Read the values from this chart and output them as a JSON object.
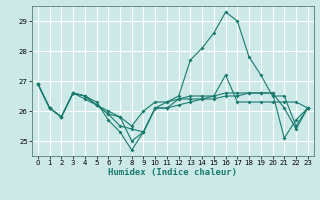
{
  "xlabel": "Humidex (Indice chaleur)",
  "ylabel": "",
  "background_color": "#cce9e8",
  "grid_color": "#ffffff",
  "line_color": "#1a7a6e",
  "hours": [
    0,
    1,
    2,
    3,
    4,
    5,
    6,
    7,
    8,
    9,
    10,
    11,
    12,
    13,
    14,
    15,
    16,
    17,
    18,
    19,
    20,
    21,
    22,
    23
  ],
  "series": [
    [
      26.9,
      26.1,
      25.8,
      26.6,
      26.5,
      26.3,
      25.7,
      25.3,
      24.7,
      25.3,
      26.1,
      26.1,
      26.2,
      26.3,
      26.4,
      26.4,
      26.5,
      26.5,
      26.6,
      26.6,
      26.6,
      26.1,
      25.4,
      26.1
    ],
    [
      26.9,
      26.1,
      25.8,
      26.6,
      26.5,
      26.2,
      25.9,
      25.8,
      25.5,
      26.0,
      26.3,
      26.3,
      26.4,
      26.4,
      26.4,
      26.5,
      27.2,
      26.3,
      26.3,
      26.3,
      26.3,
      26.3,
      26.3,
      26.1
    ],
    [
      26.9,
      26.1,
      25.8,
      26.6,
      26.4,
      26.2,
      26.0,
      25.8,
      25.0,
      25.3,
      26.1,
      26.3,
      26.5,
      27.7,
      28.1,
      28.6,
      29.3,
      29.0,
      27.8,
      27.2,
      26.5,
      26.5,
      25.5,
      26.1
    ],
    [
      26.9,
      26.1,
      25.8,
      26.6,
      26.5,
      26.2,
      25.9,
      25.5,
      25.4,
      25.3,
      26.1,
      26.1,
      26.4,
      26.5,
      26.5,
      26.5,
      26.6,
      26.6,
      26.6,
      26.6,
      26.6,
      25.1,
      25.7,
      26.1
    ]
  ],
  "ylim": [
    24.5,
    29.5
  ],
  "yticks": [
    25,
    26,
    27,
    28,
    29
  ],
  "xlim": [
    -0.5,
    23.5
  ],
  "xticks": [
    0,
    1,
    2,
    3,
    4,
    5,
    6,
    7,
    8,
    9,
    10,
    11,
    12,
    13,
    14,
    15,
    16,
    17,
    18,
    19,
    20,
    21,
    22,
    23
  ]
}
